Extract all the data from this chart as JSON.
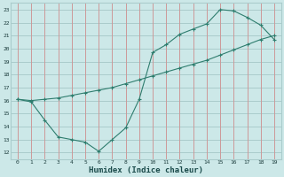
{
  "title": "",
  "xlabel": "Humidex (Indice chaleur)",
  "bg_color": "#cce8e8",
  "grid_color_h": "#aacccc",
  "grid_color_v": "#cc9999",
  "line_color": "#2e7d6e",
  "series1_x": [
    0,
    1,
    2,
    3,
    4,
    5,
    6,
    7,
    8,
    9,
    10,
    11,
    12,
    13,
    14,
    15,
    16,
    17,
    18,
    19
  ],
  "series1_y": [
    16.1,
    16.0,
    16.1,
    16.2,
    16.4,
    16.6,
    16.8,
    17.0,
    17.3,
    17.6,
    17.9,
    18.2,
    18.5,
    18.8,
    19.1,
    19.5,
    19.9,
    20.3,
    20.7,
    21.0
  ],
  "series2_x": [
    0,
    1,
    2,
    3,
    4,
    5,
    6,
    7,
    8,
    9,
    10,
    11,
    12,
    13,
    14,
    15,
    16,
    17,
    18,
    19
  ],
  "series2_y": [
    16.1,
    15.9,
    14.5,
    13.2,
    13.0,
    12.8,
    12.1,
    13.0,
    13.9,
    16.1,
    19.7,
    20.3,
    21.1,
    21.5,
    21.9,
    23.0,
    22.9,
    22.4,
    21.8,
    20.7
  ],
  "xlim": [
    -0.5,
    19.5
  ],
  "ylim": [
    11.5,
    23.5
  ],
  "xticks": [
    0,
    1,
    2,
    3,
    4,
    5,
    6,
    7,
    8,
    9,
    10,
    11,
    12,
    13,
    14,
    15,
    16,
    17,
    18,
    19
  ],
  "yticks": [
    12,
    13,
    14,
    15,
    16,
    17,
    18,
    19,
    20,
    21,
    22,
    23
  ],
  "marker": "+"
}
